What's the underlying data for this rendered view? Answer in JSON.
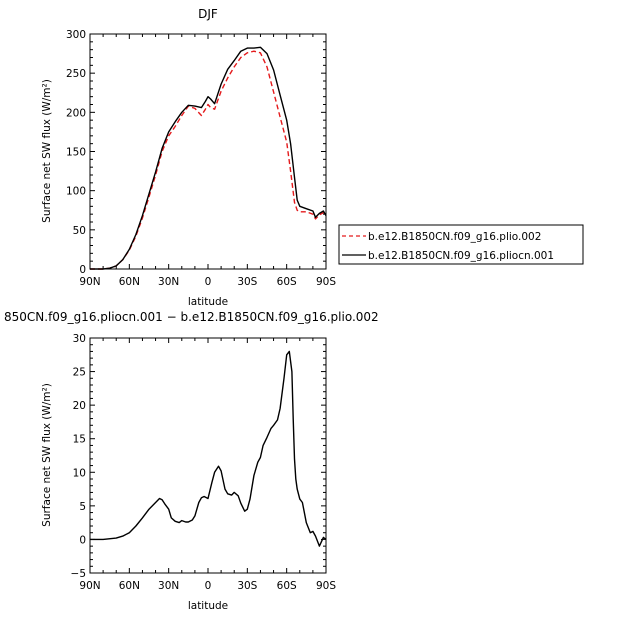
{
  "chart_data": [
    {
      "type": "line",
      "title": "DJF",
      "xlabel": "latitude",
      "ylabel": "Surface net SW flux (W/m²)",
      "xlim": [
        90,
        -90
      ],
      "ylim": [
        0,
        300
      ],
      "x_ticks": [
        "90N",
        "60N",
        "30N",
        "0",
        "30S",
        "60S",
        "90S"
      ],
      "y_ticks": [
        "0",
        "50",
        "100",
        "150",
        "200",
        "250",
        "300"
      ],
      "legend_position": "right",
      "series": [
        {
          "name": "b.e12.B1850CN.f09_g16.plio.002",
          "color": "#e41a1c",
          "dash": "dashed",
          "x": [
            90,
            80,
            75,
            70,
            65,
            60,
            55,
            50,
            45,
            40,
            35,
            30,
            25,
            20,
            15,
            10,
            5,
            2,
            0,
            -2,
            -5,
            -10,
            -15,
            -20,
            -25,
            -30,
            -35,
            -40,
            -45,
            -50,
            -55,
            -60,
            -63,
            -66,
            -68,
            -70,
            -75,
            -80,
            -82,
            -85,
            -88,
            -90
          ],
          "y": [
            0,
            0,
            1,
            4,
            12,
            24,
            42,
            65,
            92,
            120,
            150,
            170,
            182,
            196,
            208,
            205,
            196,
            204,
            210,
            206,
            204,
            227,
            244,
            258,
            270,
            276,
            278,
            276,
            258,
            226,
            194,
            162,
            125,
            85,
            75,
            73,
            73,
            70,
            64,
            69,
            72,
            69
          ]
        },
        {
          "name": "b.e12.B1850CN.f09_g16.pliocn.001",
          "color": "#000000",
          "dash": "solid",
          "x": [
            90,
            80,
            75,
            70,
            65,
            60,
            55,
            50,
            45,
            40,
            35,
            30,
            25,
            20,
            15,
            10,
            5,
            2,
            0,
            -2,
            -5,
            -10,
            -15,
            -20,
            -25,
            -30,
            -35,
            -40,
            -45,
            -50,
            -55,
            -60,
            -63,
            -66,
            -68,
            -70,
            -75,
            -80,
            -82,
            -85,
            -88,
            -90
          ],
          "y": [
            0,
            0,
            1,
            4,
            12,
            25,
            44,
            68,
            96,
            124,
            154,
            175,
            188,
            200,
            209,
            208,
            206,
            214,
            220,
            217,
            211,
            236,
            255,
            266,
            278,
            282,
            282,
            283,
            275,
            254,
            222,
            190,
            160,
            117,
            88,
            80,
            77,
            74,
            66,
            71,
            74,
            68
          ]
        }
      ]
    },
    {
      "type": "line",
      "title": "850CN.f09_g16.pliocn.001 − b.e12.B1850CN.f09_g16.plio.002",
      "xlabel": "latitude",
      "ylabel": "Surface net SW flux (W/m²)",
      "xlim": [
        90,
        -90
      ],
      "ylim": [
        -5,
        30
      ],
      "x_ticks": [
        "90N",
        "60N",
        "30N",
        "0",
        "30S",
        "60S",
        "90S"
      ],
      "y_ticks": [
        "−5",
        "0",
        "5",
        "10",
        "15",
        "20",
        "25",
        "30"
      ],
      "series": [
        {
          "color": "#000000",
          "dash": "solid",
          "x": [
            90,
            80,
            70,
            65,
            60,
            55,
            50,
            45,
            40,
            37,
            35,
            33,
            30,
            28,
            25,
            22,
            20,
            17,
            15,
            12,
            10,
            7,
            5,
            3,
            0,
            -3,
            -5,
            -8,
            -10,
            -13,
            -15,
            -18,
            -20,
            -23,
            -25,
            -28,
            -30,
            -32,
            -35,
            -38,
            -40,
            -42,
            -45,
            -48,
            -50,
            -53,
            -55,
            -58,
            -60,
            -62,
            -64,
            -65,
            -66,
            -67,
            -68,
            -70,
            -72,
            -75,
            -78,
            -80,
            -82,
            -85,
            -88,
            -90
          ],
          "y": [
            0,
            0,
            0.2,
            0.5,
            1.0,
            2.0,
            3.2,
            4.5,
            5.5,
            6.1,
            5.9,
            5.3,
            4.5,
            3.2,
            2.7,
            2.5,
            2.8,
            2.6,
            2.6,
            2.9,
            3.5,
            5.5,
            6.2,
            6.4,
            6.1,
            8.5,
            10.0,
            10.9,
            10.2,
            7.5,
            6.8,
            6.6,
            7.0,
            6.5,
            5.4,
            4.2,
            4.5,
            6.0,
            9.5,
            11.5,
            12.2,
            14.0,
            15.2,
            16.5,
            17.0,
            17.8,
            19.5,
            24.0,
            27.5,
            28.0,
            25.0,
            18.0,
            12.0,
            9.0,
            7.5,
            6.0,
            5.5,
            2.5,
            1.0,
            1.2,
            0.5,
            -1.0,
            0.3,
            0.0
          ]
        }
      ]
    }
  ]
}
